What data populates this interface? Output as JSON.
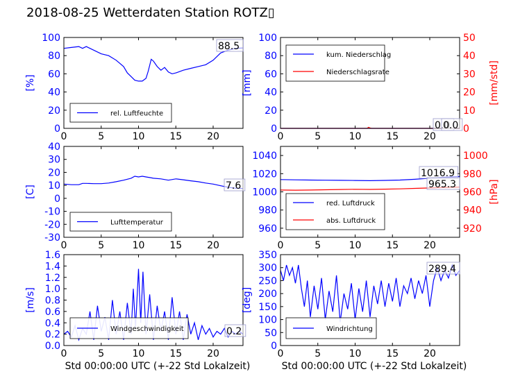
{
  "page_title": "2018-08-25 Wetterdaten Station ROTZ▯",
  "colors": {
    "primary": "#0000ff",
    "secondary": "#ff0000",
    "axis": "#000000",
    "legend_border": "#000000"
  },
  "chart_data": [
    {
      "id": "humidity",
      "type": "line",
      "ylabel": "[%]",
      "ylim": [
        0,
        100
      ],
      "yticks": [
        0,
        20,
        40,
        60,
        80,
        100
      ],
      "xlim": [
        0,
        24
      ],
      "xticks": [
        0,
        5,
        10,
        15,
        20
      ],
      "xlabel": "",
      "legend_placement": "lower-left",
      "series": [
        {
          "name": "rel. Luftfeuchte",
          "axis": "left",
          "x": [
            0,
            1,
            2,
            2.5,
            3,
            4,
            5,
            6,
            7,
            8,
            8.5,
            9,
            9.5,
            10,
            10.5,
            11,
            11.3,
            11.7,
            12,
            12.5,
            13,
            13.5,
            14,
            14.5,
            15,
            16,
            17,
            18,
            19,
            20,
            21,
            22,
            23,
            24
          ],
          "y": [
            88,
            89,
            90,
            88,
            90,
            86,
            82,
            80,
            75,
            68,
            61,
            57,
            53,
            52,
            52,
            55,
            63,
            76,
            74,
            68,
            64,
            67,
            62,
            60,
            61,
            64,
            66,
            68,
            70,
            75,
            83,
            86,
            88,
            88.5
          ]
        }
      ],
      "annotations": [
        "88.5"
      ]
    },
    {
      "id": "precipitation",
      "type": "line",
      "ylabel": "[mm]",
      "ylabel_right": "[mm/std]",
      "ylim": [
        0,
        100
      ],
      "ylim_right": [
        0,
        50
      ],
      "yticks": [
        0,
        20,
        40,
        60,
        80,
        100
      ],
      "yticks_right": [
        0,
        10,
        20,
        30,
        40,
        50
      ],
      "xlim": [
        0,
        24
      ],
      "xticks": [
        0,
        5,
        10,
        15,
        20
      ],
      "xlabel": "",
      "legend_placement": "upper-left",
      "series": [
        {
          "name": "kum. Niederschlag",
          "axis": "left",
          "x": [
            0,
            24
          ],
          "y": [
            0,
            0
          ]
        },
        {
          "name": "Niederschlagsrate",
          "axis": "right",
          "x": [
            0,
            11.6,
            11.8,
            12,
            12.2,
            24
          ],
          "y": [
            0,
            0,
            0.6,
            0.2,
            0,
            0
          ]
        }
      ],
      "annotations": [
        "0.0",
        "0.0"
      ]
    },
    {
      "id": "temperature",
      "type": "line",
      "ylabel": "[C]",
      "ylim": [
        -30,
        40
      ],
      "yticks": [
        -30,
        -20,
        -10,
        0,
        10,
        20,
        30,
        40
      ],
      "xlim": [
        0,
        24
      ],
      "xticks": [
        0,
        5,
        10,
        15,
        20
      ],
      "xlabel": "",
      "legend_placement": "lower-left",
      "series": [
        {
          "name": "Lufttemperatur",
          "axis": "left",
          "x": [
            0,
            1,
            2,
            2.5,
            3,
            4,
            5,
            6,
            7,
            8,
            9,
            9.5,
            10,
            10.5,
            11,
            11.5,
            12,
            13,
            14,
            15,
            16,
            17,
            18,
            19,
            20,
            21,
            22,
            23,
            24
          ],
          "y": [
            11,
            10.5,
            10.5,
            11.5,
            11.5,
            11.3,
            11.3,
            11.8,
            12.8,
            14,
            15.5,
            17,
            16.5,
            17,
            16.5,
            16,
            15.5,
            15,
            14,
            15,
            14.3,
            13.5,
            12.8,
            11.8,
            11,
            9.7,
            8.5,
            7.8,
            7.6
          ]
        }
      ],
      "annotations": [
        "7.6"
      ]
    },
    {
      "id": "pressure",
      "type": "line",
      "ylabel_right": "[hPa]",
      "ylim": [
        950,
        1050
      ],
      "ylim_right": [
        910,
        1010
      ],
      "yticks": [
        960,
        980,
        1000,
        1020,
        1040
      ],
      "yticks_right": [
        920,
        940,
        960,
        980,
        1000
      ],
      "xlim": [
        0,
        24
      ],
      "xticks": [
        0,
        5,
        10,
        15,
        20
      ],
      "xlabel": "",
      "legend_placement": "lower-left",
      "series": [
        {
          "name": "red. Luftdruck",
          "axis": "left",
          "x": [
            0,
            2,
            4,
            6,
            8,
            10,
            12,
            14,
            16,
            18,
            20,
            22,
            24
          ],
          "y": [
            1013.5,
            1013.2,
            1013,
            1012.8,
            1012.7,
            1012.5,
            1012.3,
            1012.6,
            1013,
            1013.8,
            1015,
            1016.2,
            1016.9
          ]
        },
        {
          "name": "abs. Luftdruck",
          "axis": "right",
          "x": [
            0,
            2,
            4,
            6,
            8,
            10,
            12,
            14,
            16,
            18,
            20,
            22,
            24
          ],
          "y": [
            962,
            961.8,
            962,
            962.3,
            962.6,
            962.8,
            962.7,
            963,
            963.3,
            963.8,
            964.3,
            964.9,
            965.3
          ]
        }
      ],
      "annotations": [
        "1016.9",
        "965.3"
      ]
    },
    {
      "id": "windspeed",
      "type": "line",
      "ylabel": "[m/s]",
      "ylim": [
        0,
        1.6
      ],
      "yticks": [
        "0.0",
        "0.2",
        "0.4",
        "0.6",
        "0.8",
        "1.0",
        "1.2",
        "1.4",
        "1.6"
      ],
      "xlim": [
        0,
        24
      ],
      "xticks": [
        0,
        5,
        10,
        15,
        20
      ],
      "xlabel": "Std 00:00:00 UTC (+-22 Std Lokalzeit)",
      "legend_placement": "lower-left",
      "series": [
        {
          "name": "Windgeschwindigkeit",
          "axis": "left",
          "x": [
            0,
            0.5,
            1,
            1.5,
            2,
            2.5,
            3,
            3.5,
            4,
            4.5,
            5,
            5.5,
            6,
            6.5,
            7,
            7.5,
            8,
            8.5,
            9,
            9.3,
            9.6,
            10,
            10.3,
            10.6,
            11,
            11.5,
            12,
            12.5,
            13,
            13.5,
            14,
            14.5,
            15,
            15.5,
            16,
            16.5,
            17,
            17.5,
            18,
            18.5,
            19,
            19.5,
            20,
            20.5,
            21,
            21.5,
            22,
            22.5,
            23,
            23.5,
            24
          ],
          "y": [
            0.2,
            0.25,
            0.15,
            0.35,
            0.1,
            0.3,
            0.2,
            0.6,
            0.1,
            0.7,
            0.25,
            0.5,
            0.1,
            0.8,
            0.2,
            0.6,
            0.1,
            0.75,
            0.2,
            1.0,
            0.3,
            1.35,
            0.4,
            1.3,
            0.2,
            0.9,
            0.1,
            0.7,
            0.25,
            0.6,
            0.1,
            0.85,
            0.2,
            0.6,
            0.1,
            0.55,
            0.2,
            0.4,
            0.1,
            0.35,
            0.2,
            0.3,
            0.15,
            0.25,
            0.2,
            0.3,
            0.15,
            0.25,
            0.2,
            0.25,
            0.2
          ]
        }
      ],
      "annotations": [
        "0.2"
      ]
    },
    {
      "id": "winddirection",
      "type": "line",
      "ylabel": "[deg]",
      "ylim": [
        0,
        350
      ],
      "yticks": [
        0,
        50,
        100,
        150,
        200,
        250,
        300,
        350
      ],
      "xlim": [
        0,
        24
      ],
      "xticks": [
        0,
        5,
        10,
        15,
        20
      ],
      "xlabel": "Std 00:00:00 UTC (+-22 Std Lokalzeit)",
      "legend_placement": "lower-left",
      "series": [
        {
          "name": "Windrichtung",
          "axis": "left",
          "x": [
            0,
            0.4,
            0.8,
            1.2,
            1.6,
            2,
            2.4,
            2.8,
            3.2,
            3.6,
            4,
            4.5,
            5,
            5.5,
            6,
            6.5,
            7,
            7.5,
            8,
            8.5,
            9,
            9.5,
            10,
            10.5,
            11,
            11.5,
            12,
            12.5,
            13,
            13.5,
            14,
            14.5,
            15,
            15.5,
            16,
            16.5,
            17,
            17.5,
            18,
            18.5,
            19,
            19.5,
            20,
            20.5,
            21,
            21.5,
            22,
            22.5,
            23,
            23.5,
            24
          ],
          "y": [
            290,
            250,
            310,
            270,
            300,
            240,
            310,
            220,
            150,
            250,
            110,
            230,
            140,
            260,
            100,
            210,
            130,
            270,
            90,
            200,
            140,
            240,
            100,
            220,
            130,
            250,
            110,
            230,
            160,
            250,
            150,
            240,
            170,
            260,
            150,
            230,
            200,
            260,
            180,
            250,
            200,
            270,
            150,
            250,
            300,
            250,
            290,
            260,
            310,
            270,
            289.4
          ]
        }
      ],
      "annotations": [
        "289.4"
      ]
    }
  ]
}
